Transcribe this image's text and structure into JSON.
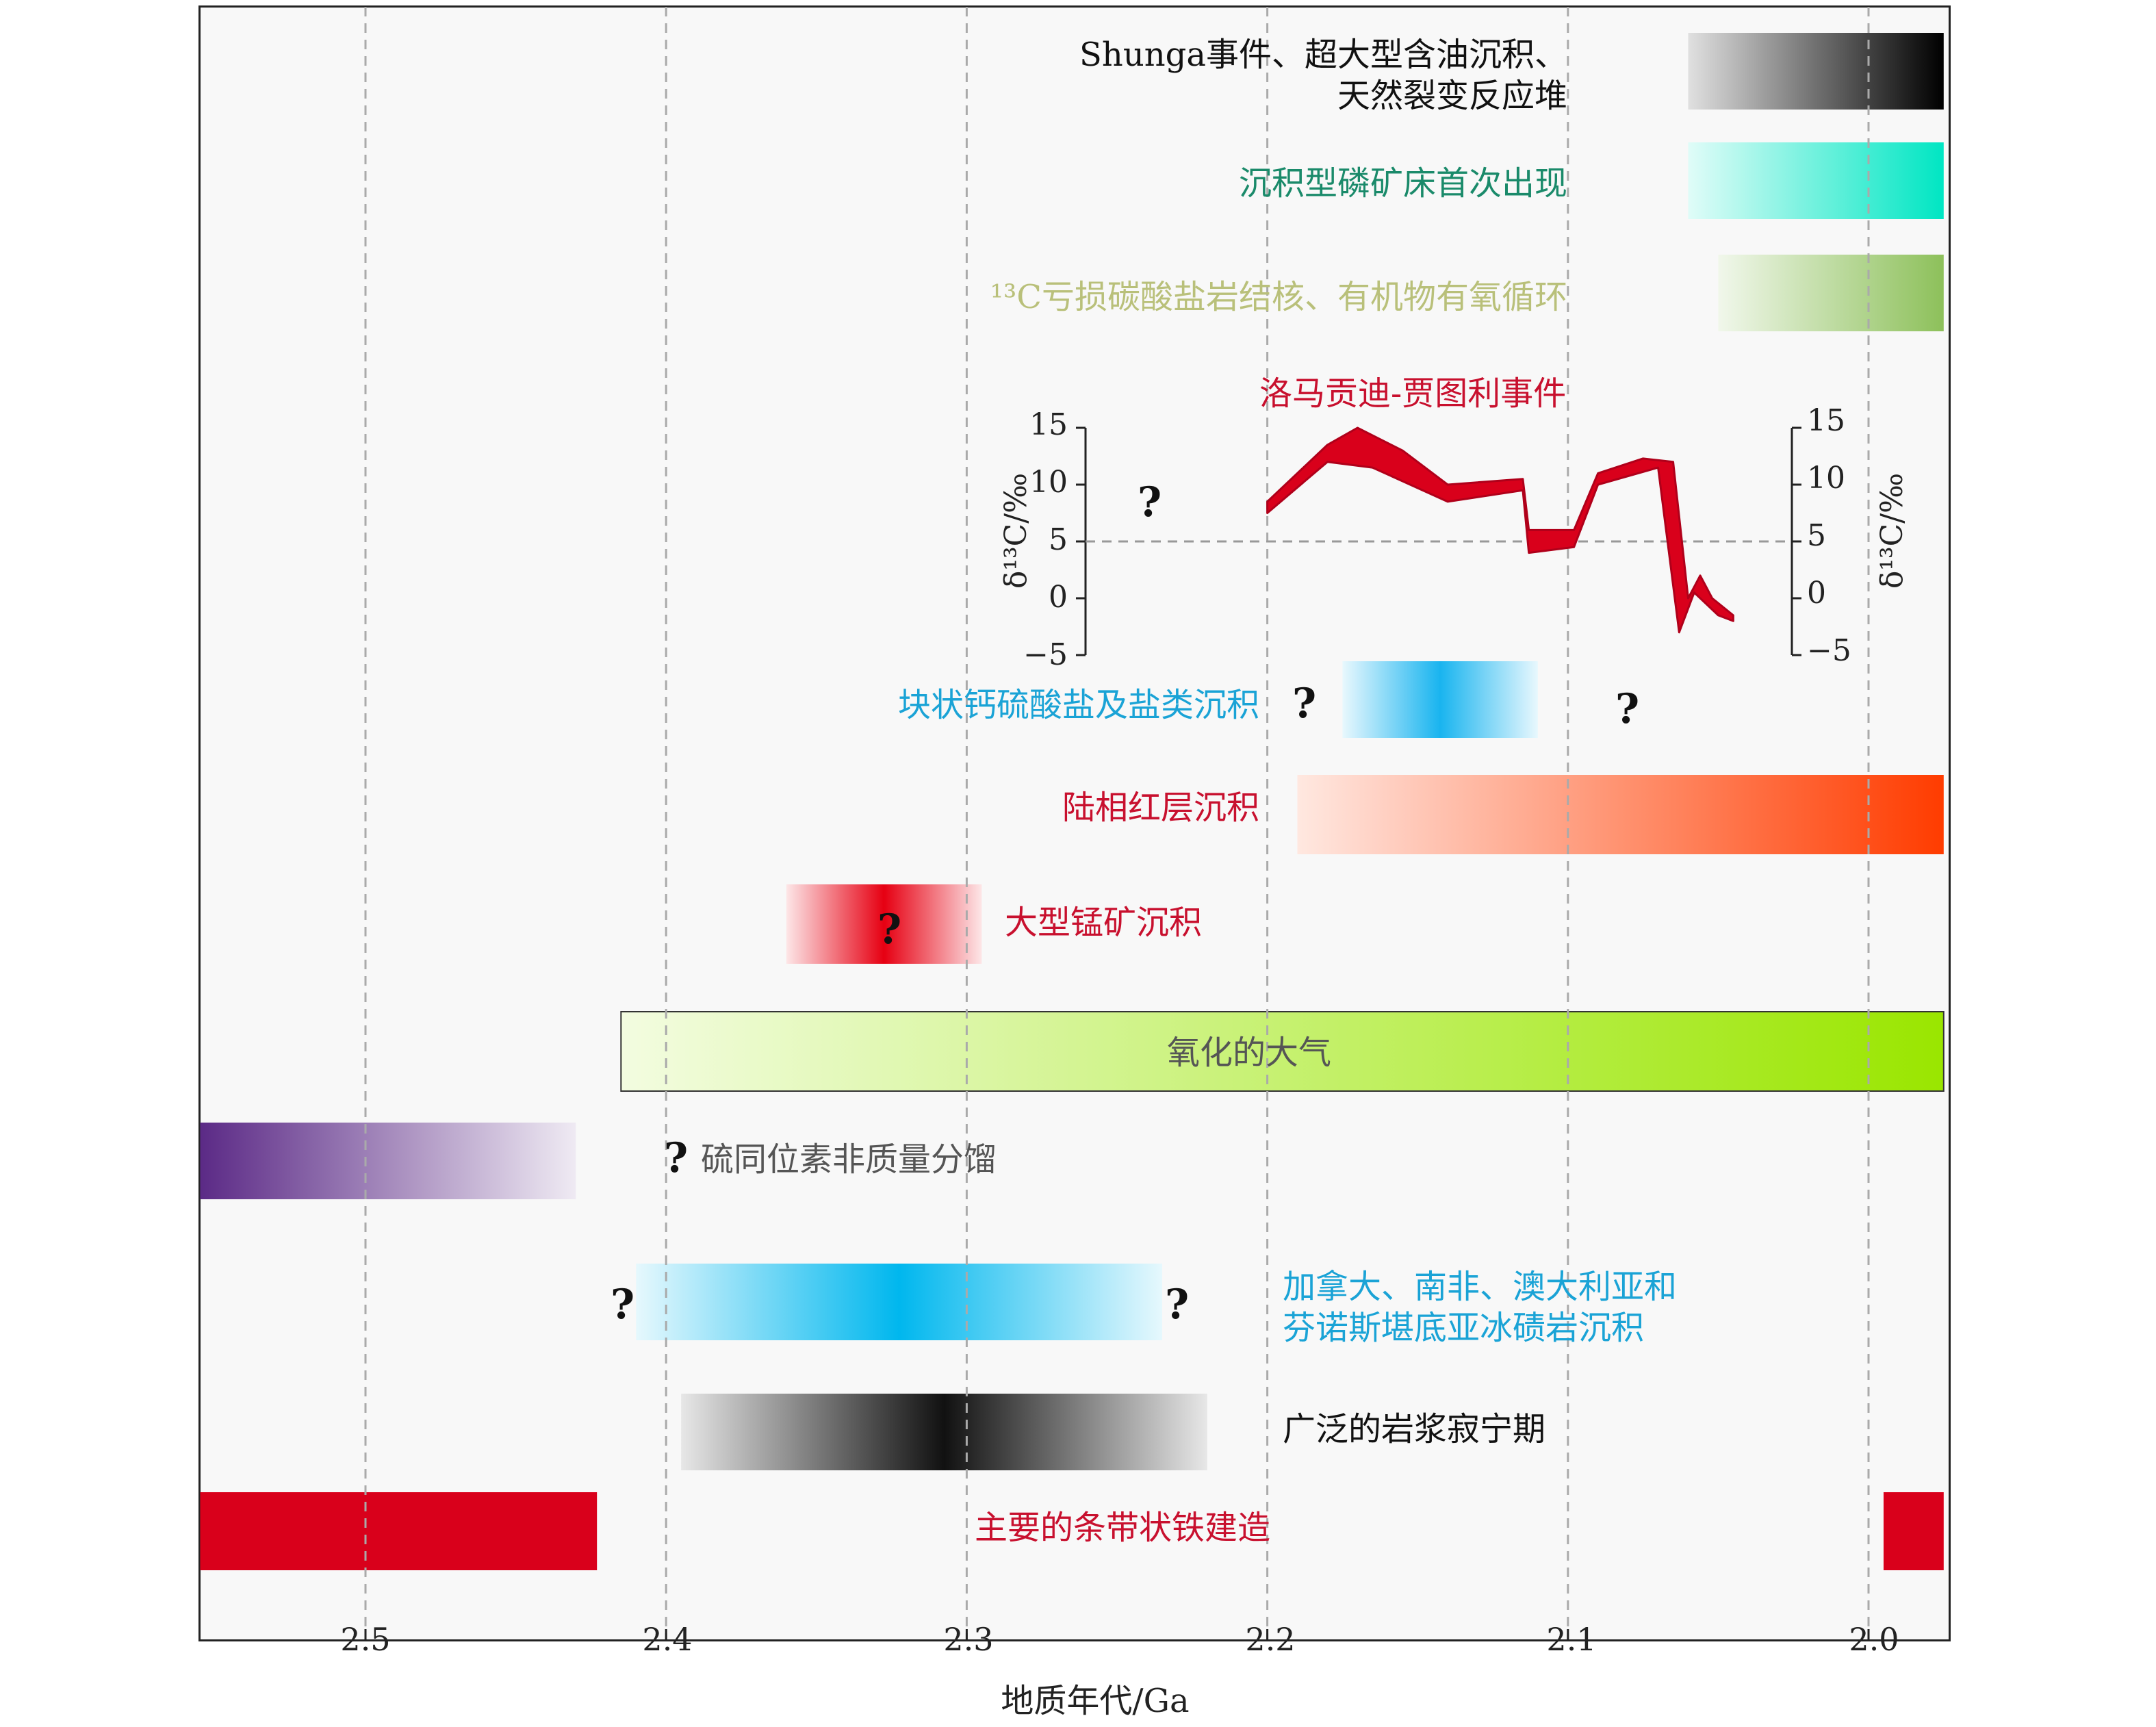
{
  "chart_data": {
    "type": "timeline",
    "xlabel": "地质年代/Ga",
    "xlim": [
      2.555,
      1.975
    ],
    "xticks": [
      "2.5",
      "2.4",
      "2.3",
      "2.2",
      "2.1",
      "2.0"
    ],
    "events": [
      {
        "id": "shunga",
        "label_line1": "Shunga事件、超大型含油沉积、",
        "label_line2": "天然裂变反应堆",
        "start": 2.06,
        "end": 1.975,
        "color": "#000000"
      },
      {
        "id": "phosphorite",
        "label": "沉积型磷矿床首次出现",
        "start": 2.06,
        "end": 1.975,
        "color": "#00e6c3"
      },
      {
        "id": "c13",
        "label": "¹³C亏损碳酸盐岩结核、有机物有氧循环",
        "start": 2.05,
        "end": 1.975,
        "color": "#8dc05a"
      },
      {
        "id": "lomagundi",
        "label": "洛马贡迪-贾图利事件",
        "color": "#d9001b"
      },
      {
        "id": "sulfate",
        "label": "块状钙硫酸盐及盐类沉积",
        "start": 2.175,
        "end": 2.11,
        "color": "#19b4ef"
      },
      {
        "id": "redbeds",
        "label": "陆相红层沉积",
        "start": 2.19,
        "end": 1.975,
        "color": "#ff3c00"
      },
      {
        "id": "manganese",
        "label": "大型锰矿沉积",
        "start": 2.36,
        "end": 2.295,
        "color": "#e60012"
      },
      {
        "id": "atmosphere",
        "label": "氧化的大气",
        "start": 2.415,
        "end": 1.975,
        "color": "#9ae600"
      },
      {
        "id": "mif",
        "label": "硫同位素非质量分馏",
        "start": 2.555,
        "end": 2.43,
        "color": "#5b2a86"
      },
      {
        "id": "glacial_line1",
        "label_line1": "加拿大、南非、澳大利亚和",
        "label_line2": "芬诺斯堪底亚冰碛岩沉积",
        "start": 2.41,
        "end": 2.235,
        "color": "#00b7ee"
      },
      {
        "id": "magmatic",
        "label": "广泛的岩浆寂宁期",
        "start": 2.395,
        "end": 2.22,
        "color": "#111111"
      },
      {
        "id": "bif",
        "label": "主要的条带状铁建造",
        "segments": [
          [
            2.555,
            2.423
          ],
          [
            1.995,
            1.975
          ]
        ],
        "color": "#d9001b"
      }
    ],
    "delta13C": {
      "ylabel": "δ¹³C/‰",
      "ylim": [
        -5,
        15
      ],
      "yticks_left": [
        "15",
        "10",
        "5",
        "0",
        "−5"
      ],
      "yticks_right": [
        "15",
        "10",
        "5",
        "0",
        "−5"
      ],
      "reference_line": 5,
      "upper": [
        [
          2.2,
          8.5
        ],
        [
          2.18,
          13.5
        ],
        [
          2.17,
          15
        ],
        [
          2.155,
          13
        ],
        [
          2.14,
          10
        ],
        [
          2.115,
          10.5
        ],
        [
          2.113,
          6
        ],
        [
          2.098,
          6
        ],
        [
          2.09,
          11
        ],
        [
          2.075,
          12.3
        ],
        [
          2.065,
          12
        ],
        [
          2.06,
          0
        ],
        [
          2.056,
          2
        ],
        [
          2.052,
          0
        ],
        [
          2.045,
          -1.5
        ]
      ],
      "lower": [
        [
          2.2,
          7.5
        ],
        [
          2.18,
          12
        ],
        [
          2.165,
          11.5
        ],
        [
          2.14,
          8.5
        ],
        [
          2.115,
          9.5
        ],
        [
          2.113,
          4
        ],
        [
          2.098,
          4.5
        ],
        [
          2.09,
          10
        ],
        [
          2.07,
          11.5
        ],
        [
          2.063,
          -3
        ],
        [
          2.058,
          0.5
        ],
        [
          2.05,
          -1.5
        ],
        [
          2.045,
          -2
        ]
      ]
    }
  },
  "question_mark": "?"
}
